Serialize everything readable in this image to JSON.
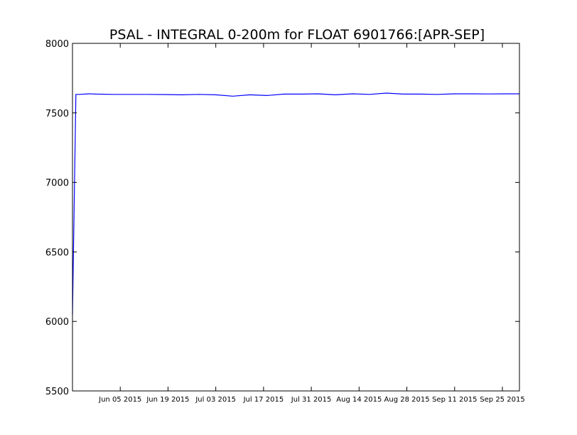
{
  "chart_data": {
    "type": "line",
    "title": "PSAL - INTEGRAL 0-200m for FLOAT 6901766:[APR-SEP]",
    "xlabel": "",
    "ylabel": "",
    "xlim": [
      "2015-05-22",
      "2015-09-30"
    ],
    "ylim": [
      5500,
      8000
    ],
    "yticks": [
      5500,
      6000,
      6500,
      7000,
      7500,
      8000
    ],
    "xticks": [
      "Jun 05 2015",
      "Jun 19 2015",
      "Jul 03 2015",
      "Jul 17 2015",
      "Jul 31 2015",
      "Aug 14 2015",
      "Aug 28 2015",
      "Sep 11 2015",
      "Sep 25 2015"
    ],
    "xtick_dates": [
      "2015-06-05",
      "2015-06-19",
      "2015-07-03",
      "2015-07-17",
      "2015-07-31",
      "2015-08-14",
      "2015-08-28",
      "2015-09-11",
      "2015-09-25"
    ],
    "grid": false,
    "line_color": "#0000ff",
    "series": [
      {
        "x": [
          "2015-05-22",
          "2015-05-23",
          "2015-05-24",
          "2015-05-27",
          "2015-05-29",
          "2015-06-03",
          "2015-06-08",
          "2015-06-13",
          "2015-06-18",
          "2015-06-23",
          "2015-06-28",
          "2015-07-03",
          "2015-07-08",
          "2015-07-13",
          "2015-07-18",
          "2015-07-23",
          "2015-07-28",
          "2015-08-02",
          "2015-08-07",
          "2015-08-12",
          "2015-08-17",
          "2015-08-22",
          "2015-08-27",
          "2015-09-01",
          "2015-09-06",
          "2015-09-11",
          "2015-09-16",
          "2015-09-21",
          "2015-09-26",
          "2015-09-30"
        ],
        "y": [
          6050,
          7633,
          7633,
          7637,
          7635,
          7633,
          7633,
          7633,
          7632,
          7630,
          7633,
          7630,
          7620,
          7630,
          7625,
          7635,
          7635,
          7637,
          7630,
          7637,
          7633,
          7642,
          7635,
          7635,
          7633,
          7637,
          7637,
          7636,
          7637,
          7637
        ]
      }
    ]
  }
}
